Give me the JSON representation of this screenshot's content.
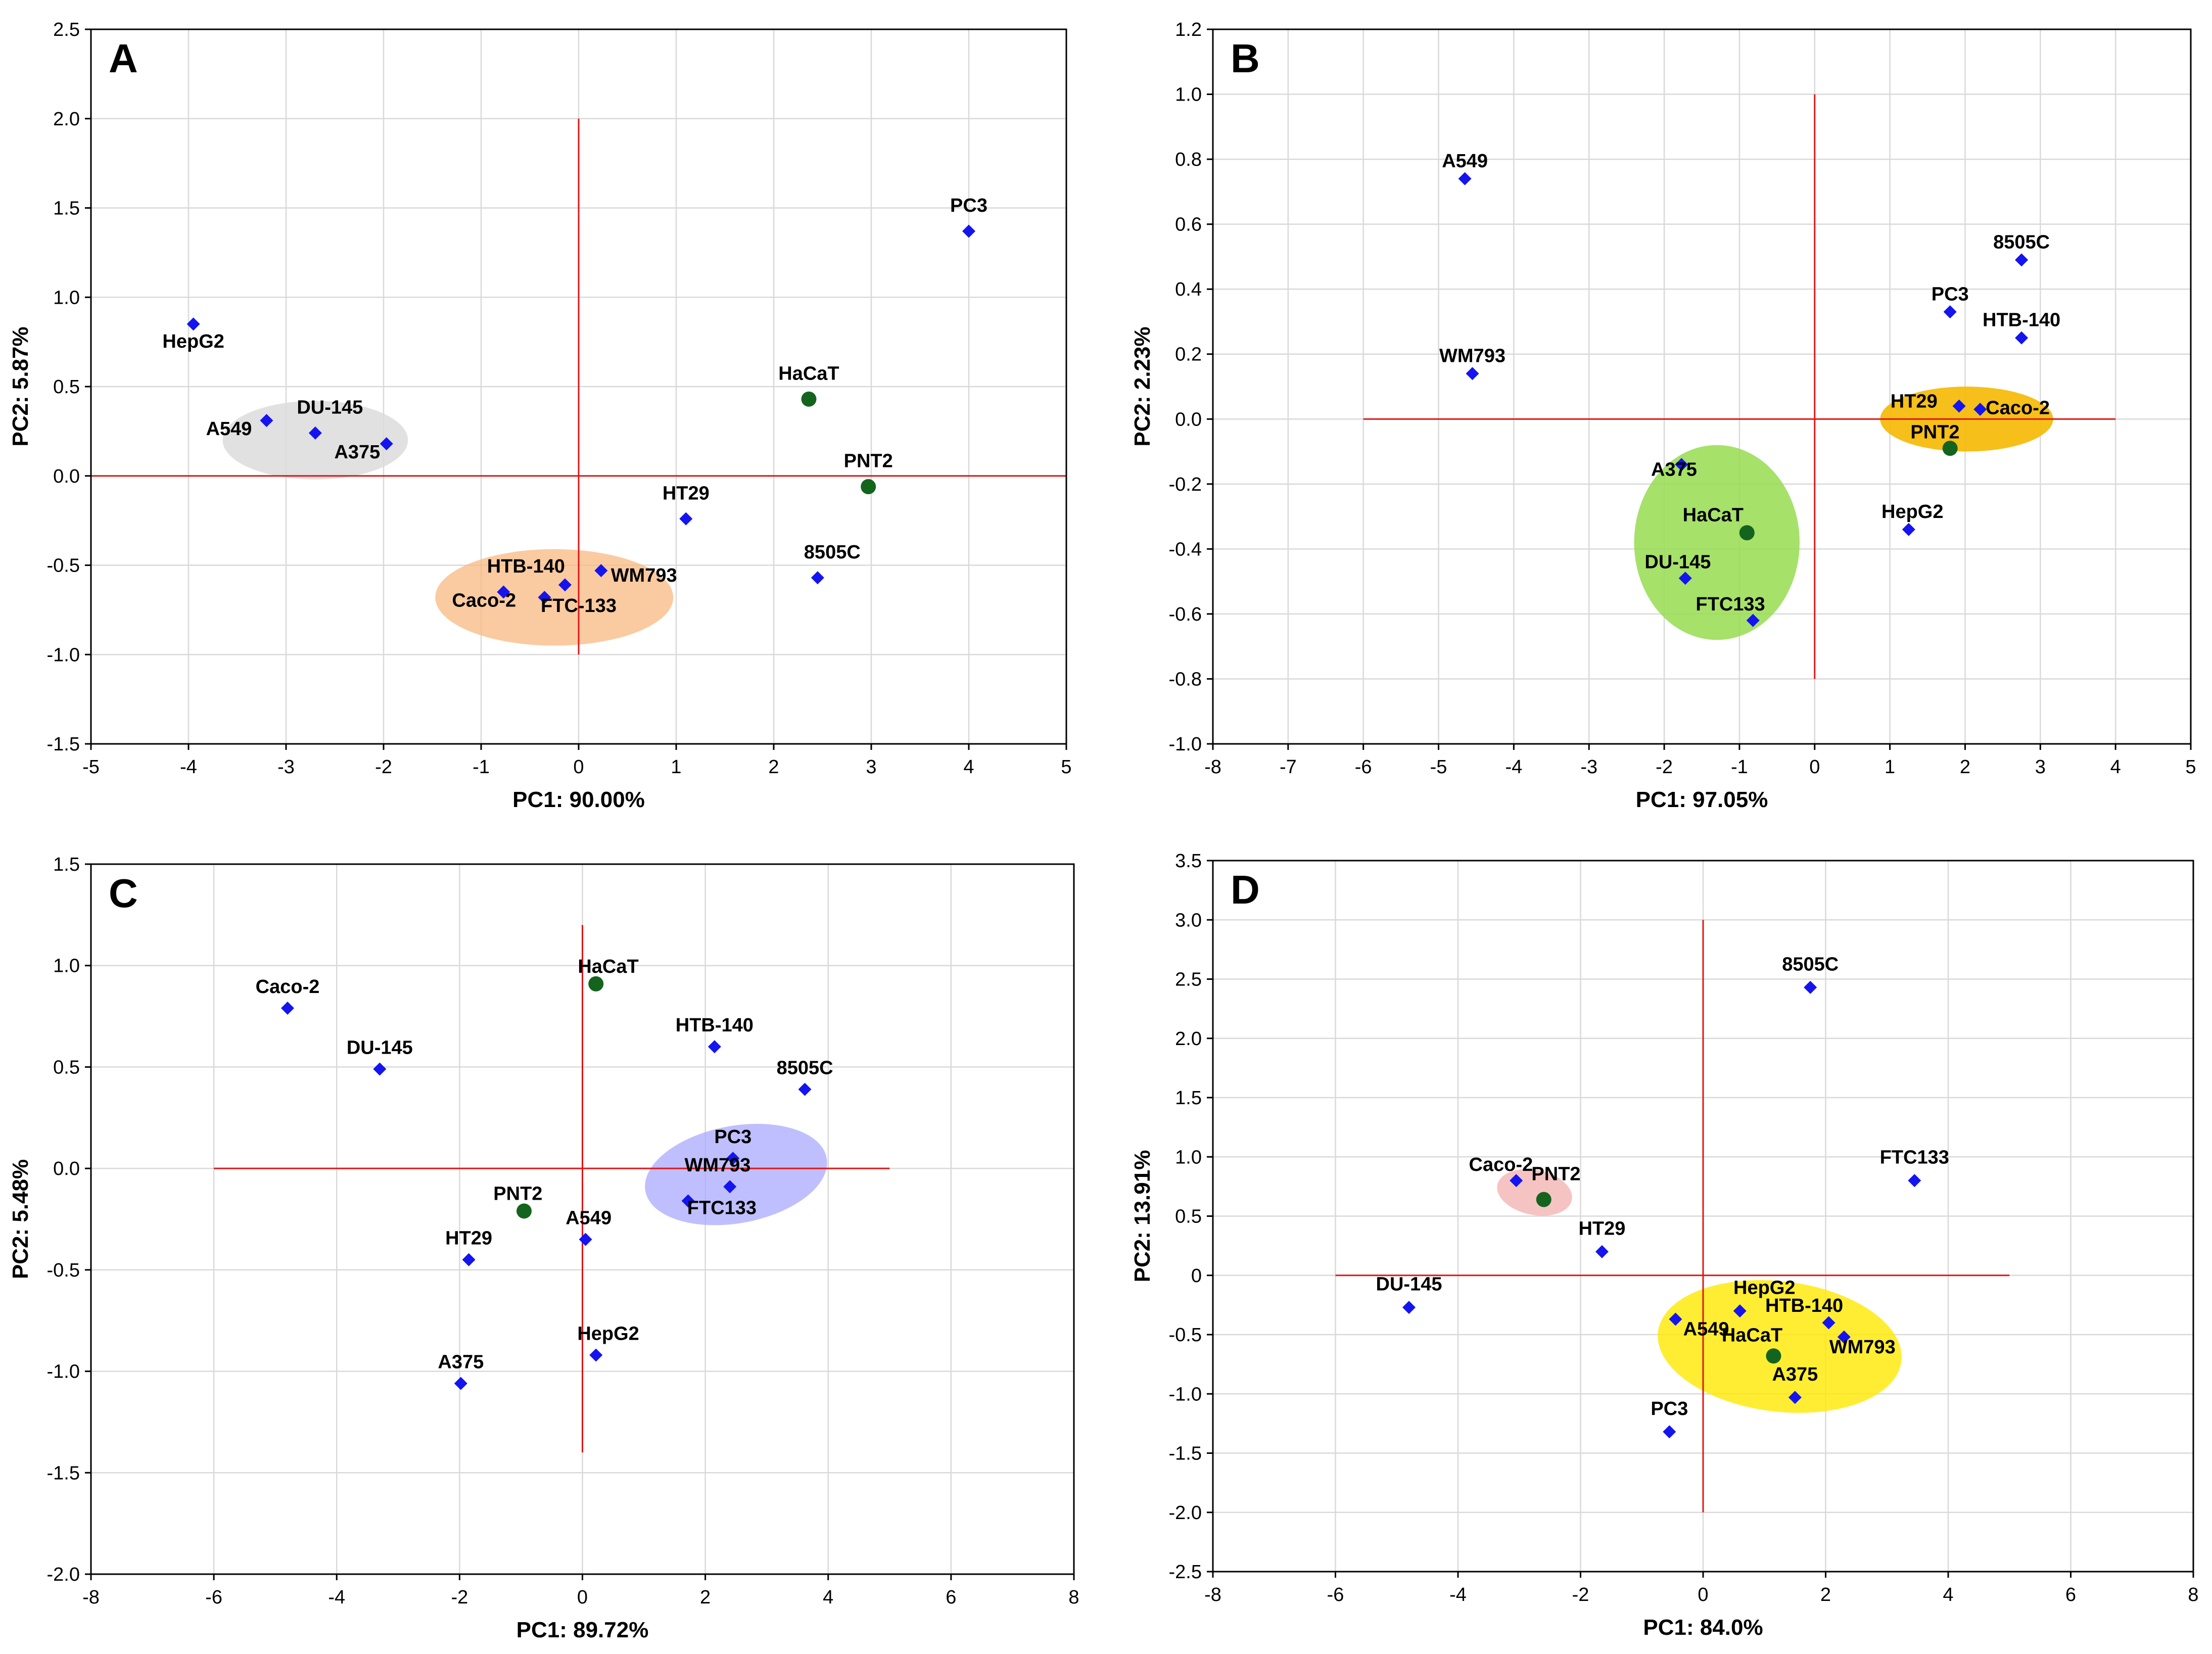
{
  "colors": {
    "cancer_marker": "#1414f0",
    "normal_marker": "#14641e",
    "reference_line": "#e01515",
    "grid": "#d9d9d9"
  },
  "chart_data": [
    {
      "type": "scatter",
      "panel": "A",
      "xlabel": "PC1: 90.00%",
      "ylabel": "PC2:  5.87%",
      "xlim": [
        -5,
        5
      ],
      "ylim": [
        -1.5,
        2.5
      ],
      "xticks": [
        -5,
        -4,
        -3,
        -2,
        -1,
        0,
        1,
        2,
        3,
        4,
        5
      ],
      "yticks": [
        -1.5,
        -1.0,
        -0.5,
        0.0,
        0.5,
        1.0,
        1.5,
        2.0,
        2.5
      ],
      "xtick_labels": [
        "-5",
        "-4",
        "-3",
        "-2",
        "-1",
        "0",
        "1",
        "2",
        "3",
        "4",
        "5"
      ],
      "ytick_labels": [
        "-1.5",
        "-1.0",
        "-0.5",
        "0.0",
        "0.5",
        "1.0",
        "1.5",
        "2.0",
        "2.5"
      ],
      "grid": true,
      "reference_lines": {
        "horizontal": {
          "y": 0,
          "x_from": -5,
          "x_to": 5
        },
        "vertical": {
          "x": 0,
          "y_from": -1,
          "y_to": 2
        }
      },
      "clusters": [
        {
          "name": "grey-cluster",
          "cx": -2.7,
          "cy": 0.2,
          "rx": 0.95,
          "ry": 0.22,
          "rotation": 0,
          "color": "#dcdcdc",
          "opacity": 0.85
        },
        {
          "name": "orange-cluster",
          "cx": -0.25,
          "cy": -0.68,
          "rx": 1.22,
          "ry": 0.27,
          "rotation": 0,
          "color": "#f8b880",
          "opacity": 0.75
        }
      ],
      "points": [
        {
          "label": "HepG2",
          "x": -3.95,
          "y": 0.85,
          "group": "cancer",
          "label_dx": 0,
          "label_dy": -0.16,
          "anchor": "middle"
        },
        {
          "label": "A549",
          "x": -3.2,
          "y": 0.31,
          "group": "cancer",
          "label_dx": -0.15,
          "label_dy": -0.11,
          "anchor": "end"
        },
        {
          "label": "DU-145",
          "x": -2.7,
          "y": 0.24,
          "group": "cancer",
          "label_dx": 0.15,
          "label_dy": 0.08,
          "anchor": "middle"
        },
        {
          "label": "A375",
          "x": -1.97,
          "y": 0.18,
          "group": "cancer",
          "label_dx": -0.3,
          "label_dy": -0.11,
          "anchor": "middle"
        },
        {
          "label": "HaCaT",
          "x": 2.36,
          "y": 0.43,
          "group": "normal",
          "label_dx": 0,
          "label_dy": 0.08,
          "anchor": "middle"
        },
        {
          "label": "PC3",
          "x": 4.0,
          "y": 1.37,
          "group": "cancer",
          "label_dx": 0,
          "label_dy": 0.08,
          "anchor": "middle"
        },
        {
          "label": "PNT2",
          "x": 2.97,
          "y": -0.06,
          "group": "normal",
          "label_dx": 0,
          "label_dy": 0.08,
          "anchor": "middle"
        },
        {
          "label": "HT29",
          "x": 1.1,
          "y": -0.24,
          "group": "cancer",
          "label_dx": 0,
          "label_dy": 0.08,
          "anchor": "middle"
        },
        {
          "label": "8505C",
          "x": 2.45,
          "y": -0.57,
          "group": "cancer",
          "label_dx": 0.15,
          "label_dy": 0.08,
          "anchor": "middle"
        },
        {
          "label": "HTB-140",
          "x": -0.14,
          "y": -0.61,
          "group": "cancer",
          "label_dx": -0.4,
          "label_dy": 0.04,
          "anchor": "middle"
        },
        {
          "label": "WM793",
          "x": 0.23,
          "y": -0.53,
          "group": "cancer",
          "label_dx": 0.1,
          "label_dy": -0.09,
          "anchor": "start"
        },
        {
          "label": "Caco-2",
          "x": -0.77,
          "y": -0.65,
          "group": "cancer",
          "label_dx": -0.2,
          "label_dy": -0.11,
          "anchor": "middle"
        },
        {
          "label": "FTC-133",
          "x": -0.35,
          "y": -0.68,
          "group": "cancer",
          "label_dx": 0.35,
          "label_dy": -0.11,
          "anchor": "middle"
        }
      ]
    },
    {
      "type": "scatter",
      "panel": "B",
      "xlabel": "PC1: 97.05%",
      "ylabel": "PC2:  2.23%",
      "xlim": [
        -8,
        5
      ],
      "ylim": [
        -1.0,
        1.2
      ],
      "xticks": [
        -8,
        -7,
        -6,
        -5,
        -4,
        -3,
        -2,
        -1,
        0,
        1,
        2,
        3,
        4,
        5
      ],
      "yticks": [
        -1.0,
        -0.8,
        -0.6,
        -0.4,
        -0.2,
        0.0,
        0.2,
        0.4,
        0.6,
        0.8,
        1.0,
        1.2
      ],
      "xtick_labels": [
        "-8",
        "-7",
        "-6",
        "-5",
        "-4",
        "-3",
        "-2",
        "-1",
        "0",
        "1",
        "2",
        "3",
        "4",
        "5"
      ],
      "ytick_labels": [
        "-1.0",
        "-0.8",
        "-0.6",
        "-0.4",
        "-0.2",
        "0.0",
        "0.2",
        "0.4",
        "0.6",
        "0.8",
        "1.0",
        "1.2"
      ],
      "grid": true,
      "reference_lines": {
        "horizontal": {
          "y": 0,
          "x_from": -6,
          "x_to": 4
        },
        "vertical": {
          "x": 0,
          "y_from": -0.8,
          "y_to": 1.0
        }
      },
      "clusters": [
        {
          "name": "green-cluster",
          "cx": -1.3,
          "cy": -0.38,
          "rx": 1.1,
          "ry": 0.3,
          "rotation": 0,
          "color": "#96dc50",
          "opacity": 0.85
        },
        {
          "name": "yellow-cluster",
          "cx": 2.02,
          "cy": 0.0,
          "rx": 1.15,
          "ry": 0.1,
          "rotation": 0,
          "color": "#f5b800",
          "opacity": 0.9
        }
      ],
      "points": [
        {
          "label": "A549",
          "x": -4.65,
          "y": 0.74,
          "group": "cancer",
          "label_dx": 0,
          "label_dy": 0.02,
          "anchor": "middle"
        },
        {
          "label": "WM793",
          "x": -4.55,
          "y": 0.14,
          "group": "cancer",
          "label_dx": 0,
          "label_dy": 0.02,
          "anchor": "middle"
        },
        {
          "label": "8505C",
          "x": 2.75,
          "y": 0.49,
          "group": "cancer",
          "label_dx": 0,
          "label_dy": 0.02,
          "anchor": "middle"
        },
        {
          "label": "PC3",
          "x": 1.8,
          "y": 0.33,
          "group": "cancer",
          "label_dx": 0,
          "label_dy": 0.02,
          "anchor": "middle"
        },
        {
          "label": "HTB-140",
          "x": 2.75,
          "y": 0.25,
          "group": "cancer",
          "label_dx": 0,
          "label_dy": 0.02,
          "anchor": "middle"
        },
        {
          "label": "HT29",
          "x": 1.92,
          "y": 0.04,
          "group": "cancer",
          "label_dx": -0.6,
          "label_dy": -0.02,
          "anchor": "middle"
        },
        {
          "label": "Caco-2",
          "x": 2.2,
          "y": 0.03,
          "group": "cancer",
          "label_dx": 0.5,
          "label_dy": -0.03,
          "anchor": "middle"
        },
        {
          "label": "PNT2",
          "x": 1.8,
          "y": -0.09,
          "group": "normal",
          "label_dx": -0.2,
          "label_dy": 0.015,
          "anchor": "middle"
        },
        {
          "label": "A375",
          "x": -1.77,
          "y": -0.14,
          "group": "cancer",
          "label_dx": -0.1,
          "label_dy": -0.05,
          "anchor": "middle"
        },
        {
          "label": "HaCaT",
          "x": -0.9,
          "y": -0.35,
          "group": "normal",
          "label_dx": -0.45,
          "label_dy": 0.02,
          "anchor": "middle"
        },
        {
          "label": "HepG2",
          "x": 1.25,
          "y": -0.34,
          "group": "cancer",
          "label_dx": 0.05,
          "label_dy": 0.02,
          "anchor": "middle"
        },
        {
          "label": "DU-145",
          "x": -1.72,
          "y": -0.49,
          "group": "cancer",
          "label_dx": -0.1,
          "label_dy": 0.015,
          "anchor": "middle"
        },
        {
          "label": "FTC133",
          "x": -0.82,
          "y": -0.62,
          "group": "cancer",
          "label_dx": -0.3,
          "label_dy": 0.015,
          "anchor": "middle"
        }
      ]
    },
    {
      "type": "scatter",
      "panel": "C",
      "xlabel": "PC1: 89.72%",
      "ylabel": "PC2:  5.48%",
      "xlim": [
        -8,
        8
      ],
      "ylim": [
        -2.0,
        1.5
      ],
      "xticks": [
        -8,
        -6,
        -4,
        -2,
        0,
        2,
        4,
        6,
        8
      ],
      "yticks": [
        -2.0,
        -1.5,
        -1.0,
        -0.5,
        0.0,
        0.5,
        1.0,
        1.5
      ],
      "xtick_labels": [
        "-8",
        "-6",
        "-4",
        "-2",
        "0",
        "2",
        "4",
        "6",
        "8"
      ],
      "ytick_labels": [
        "-2.0",
        "-1.5",
        "-1.0",
        "-0.5",
        "0.0",
        "0.5",
        "1.0",
        "1.5"
      ],
      "grid": true,
      "reference_lines": {
        "horizontal": {
          "y": 0,
          "x_from": -6,
          "x_to": 5
        },
        "vertical": {
          "x": 0,
          "y_from": -1.4,
          "y_to": 1.2
        }
      },
      "clusters": [
        {
          "name": "blue-cluster",
          "cx": 2.5,
          "cy": -0.03,
          "rx": 1.5,
          "ry": 0.24,
          "rotation": 0.18,
          "color": "#aaaaff",
          "opacity": 0.75
        }
      ],
      "points": [
        {
          "label": "Caco-2",
          "x": -4.8,
          "y": 0.79,
          "group": "cancer",
          "label_dx": 0,
          "label_dy": 0.05,
          "anchor": "middle"
        },
        {
          "label": "DU-145",
          "x": -3.3,
          "y": 0.49,
          "group": "cancer",
          "label_dx": 0,
          "label_dy": 0.05,
          "anchor": "middle"
        },
        {
          "label": "HaCaT",
          "x": 0.22,
          "y": 0.91,
          "group": "normal",
          "label_dx": 0.2,
          "label_dy": 0.03,
          "anchor": "middle"
        },
        {
          "label": "HTB-140",
          "x": 2.15,
          "y": 0.6,
          "group": "cancer",
          "label_dx": 0,
          "label_dy": 0.05,
          "anchor": "middle"
        },
        {
          "label": "8505C",
          "x": 3.62,
          "y": 0.39,
          "group": "cancer",
          "label_dx": 0,
          "label_dy": 0.05,
          "anchor": "middle"
        },
        {
          "label": "PC3",
          "x": 2.45,
          "y": 0.05,
          "group": "cancer",
          "label_dx": 0,
          "label_dy": 0.05,
          "anchor": "middle"
        },
        {
          "label": "WM793",
          "x": 2.4,
          "y": -0.09,
          "group": "cancer",
          "label_dx": -0.2,
          "label_dy": 0.05,
          "anchor": "middle"
        },
        {
          "label": "FTC133",
          "x": 1.72,
          "y": -0.16,
          "group": "cancer",
          "label_dx": 0.55,
          "label_dy": -0.09,
          "anchor": "middle"
        },
        {
          "label": "PNT2",
          "x": -0.95,
          "y": -0.21,
          "group": "normal",
          "label_dx": -0.1,
          "label_dy": 0.03,
          "anchor": "middle"
        },
        {
          "label": "A549",
          "x": 0.05,
          "y": -0.35,
          "group": "cancer",
          "label_dx": 0.05,
          "label_dy": 0.05,
          "anchor": "middle"
        },
        {
          "label": "HT29",
          "x": -1.85,
          "y": -0.45,
          "group": "cancer",
          "label_dx": 0,
          "label_dy": 0.05,
          "anchor": "middle"
        },
        {
          "label": "HepG2",
          "x": 0.22,
          "y": -0.92,
          "group": "cancer",
          "label_dx": 0.2,
          "label_dy": 0.05,
          "anchor": "middle"
        },
        {
          "label": "A375",
          "x": -1.98,
          "y": -1.06,
          "group": "cancer",
          "label_dx": 0,
          "label_dy": 0.05,
          "anchor": "middle"
        }
      ]
    },
    {
      "type": "scatter",
      "panel": "D",
      "xlabel": "PC1: 84.0%",
      "ylabel": "PC2: 13.91%",
      "xlim": [
        -8,
        8
      ],
      "ylim": [
        -2.5,
        3.5
      ],
      "xticks": [
        -8,
        -6,
        -4,
        -2,
        0,
        2,
        4,
        6,
        8
      ],
      "yticks": [
        -2.5,
        -2.0,
        -1.5,
        -1.0,
        -0.5,
        0.0,
        0.5,
        1.0,
        1.5,
        2.0,
        2.5,
        3.0,
        3.5
      ],
      "xtick_labels": [
        "-8",
        "-6",
        "-4",
        "-2",
        "0",
        "2",
        "4",
        "6",
        "8"
      ],
      "ytick_labels": [
        "-2.5",
        "-2.0",
        "-1.5",
        "-1.0",
        "-0.5",
        "0",
        "0.5",
        "1.0",
        "1.5",
        "2.0",
        "2.5",
        "3.0",
        "3.5"
      ],
      "grid": true,
      "reference_lines": {
        "horizontal": {
          "y": 0,
          "x_from": -6,
          "x_to": 5
        },
        "vertical": {
          "x": 0,
          "y_from": -2.0,
          "y_to": 3.0
        }
      },
      "clusters": [
        {
          "name": "pink-cluster",
          "cx": -2.75,
          "cy": 0.7,
          "rx": 0.62,
          "ry": 0.19,
          "rotation": -0.2,
          "color": "#f4b4b4",
          "opacity": 0.8
        },
        {
          "name": "yellow-cluster",
          "cx": 1.25,
          "cy": -0.6,
          "rx": 2.0,
          "ry": 0.55,
          "rotation": -0.12,
          "color": "#ffe800",
          "opacity": 0.8
        }
      ],
      "points": [
        {
          "label": "8505C",
          "x": 1.75,
          "y": 2.43,
          "group": "cancer",
          "label_dx": 0,
          "label_dy": 0.1,
          "anchor": "middle"
        },
        {
          "label": "FTC133",
          "x": 3.45,
          "y": 0.8,
          "group": "cancer",
          "label_dx": 0,
          "label_dy": 0.1,
          "anchor": "middle"
        },
        {
          "label": "Caco-2",
          "x": -3.05,
          "y": 0.8,
          "group": "cancer",
          "label_dx": -0.25,
          "label_dy": 0.04,
          "anchor": "middle"
        },
        {
          "label": "PNT2",
          "x": -2.6,
          "y": 0.64,
          "group": "normal",
          "label_dx": 0.2,
          "label_dy": 0.12,
          "anchor": "middle"
        },
        {
          "label": "HT29",
          "x": -1.65,
          "y": 0.2,
          "group": "cancer",
          "label_dx": 0,
          "label_dy": 0.1,
          "anchor": "middle"
        },
        {
          "label": "DU-145",
          "x": -4.8,
          "y": -0.27,
          "group": "cancer",
          "label_dx": 0,
          "label_dy": 0.1,
          "anchor": "middle"
        },
        {
          "label": "HepG2",
          "x": 0.6,
          "y": -0.3,
          "group": "cancer",
          "label_dx": 0.4,
          "label_dy": 0.1,
          "anchor": "middle"
        },
        {
          "label": "HTB-140",
          "x": 2.05,
          "y": -0.4,
          "group": "cancer",
          "label_dx": -0.4,
          "label_dy": 0.05,
          "anchor": "middle"
        },
        {
          "label": "A549",
          "x": -0.45,
          "y": -0.37,
          "group": "cancer",
          "label_dx": 0.5,
          "label_dy": -0.18,
          "anchor": "middle"
        },
        {
          "label": "WM793",
          "x": 2.3,
          "y": -0.52,
          "group": "cancer",
          "label_dx": 0.3,
          "label_dy": -0.18,
          "anchor": "middle"
        },
        {
          "label": "HaCaT",
          "x": 1.15,
          "y": -0.68,
          "group": "normal",
          "label_dx": -0.35,
          "label_dy": 0.08,
          "anchor": "middle"
        },
        {
          "label": "A375",
          "x": 1.5,
          "y": -1.03,
          "group": "cancer",
          "label_dx": 0,
          "label_dy": 0.1,
          "anchor": "middle"
        },
        {
          "label": "PC3",
          "x": -0.55,
          "y": -1.32,
          "group": "cancer",
          "label_dx": 0,
          "label_dy": 0.1,
          "anchor": "middle"
        }
      ]
    }
  ]
}
